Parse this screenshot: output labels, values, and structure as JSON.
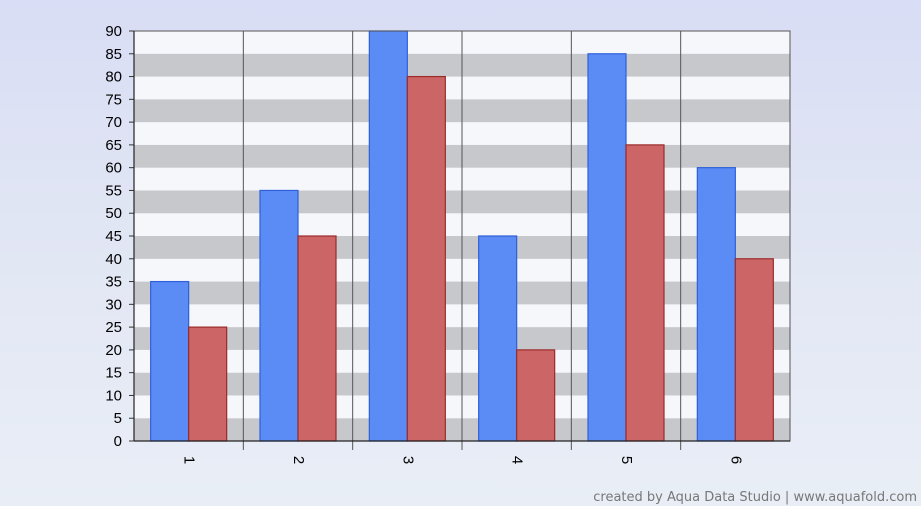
{
  "chart_data": {
    "type": "bar",
    "categories": [
      "1",
      "2",
      "3",
      "4",
      "5",
      "6"
    ],
    "series": [
      {
        "values": [
          35,
          55,
          90,
          45,
          85,
          60
        ]
      },
      {
        "values": [
          25,
          45,
          80,
          20,
          65,
          40
        ]
      }
    ],
    "ylim": [
      0,
      90
    ],
    "yticks": [
      "0",
      "5",
      "10",
      "15",
      "20",
      "25",
      "30",
      "35",
      "40",
      "45",
      "50",
      "55",
      "60",
      "65",
      "70",
      "75",
      "80",
      "85",
      "90"
    ],
    "grid": true,
    "colors": {
      "series_fill": [
        "#5b8cf6",
        "#cc6666"
      ],
      "series_stroke": [
        "#2f5fd9",
        "#9b2b2b"
      ],
      "band_light": "#f6f7fb",
      "band_dark": "#c7c8cc"
    }
  },
  "footer": {
    "credit": "created by Aqua Data Studio | www.aquafold.com"
  }
}
